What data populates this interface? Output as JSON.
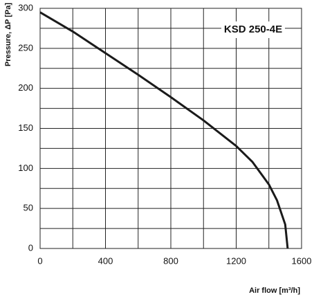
{
  "chart_data": {
    "type": "line",
    "annotation": "KSD 250-4E",
    "xlabel": "Air flow [m³/h]",
    "ylabel": "Pressure, ΔP [Pa]",
    "x": [
      0,
      200,
      400,
      600,
      800,
      1000,
      1200,
      1300,
      1400,
      1450,
      1500,
      1515
    ],
    "series": [
      {
        "name": "KSD 250-4E",
        "color": "#1a1a1a",
        "values": [
          295,
          271,
          244,
          217,
          189,
          160,
          128,
          108,
          80,
          60,
          30,
          0
        ]
      }
    ],
    "xlim": [
      0,
      1600
    ],
    "xticks": [
      0,
      400,
      800,
      1200,
      1600
    ],
    "ylim": [
      0,
      300
    ],
    "yticks": [
      0,
      50,
      100,
      150,
      200,
      250,
      300
    ],
    "xgrid_minor": [
      200,
      600,
      1000,
      1400
    ],
    "ygrid_minor": [
      25,
      75,
      125,
      175,
      225,
      275
    ],
    "grid": true
  }
}
